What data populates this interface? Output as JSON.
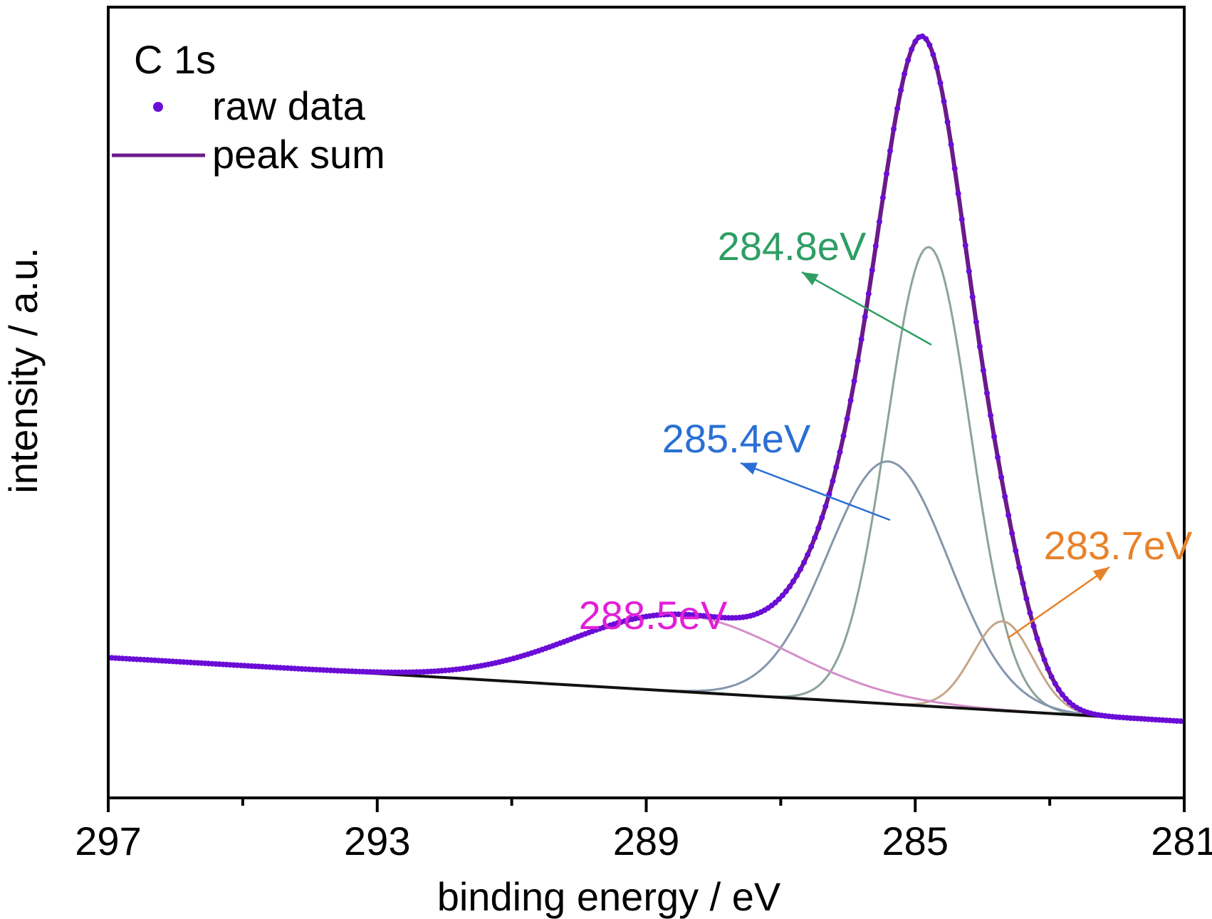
{
  "chart_data": {
    "type": "line",
    "title": "",
    "xlabel": "binding energy / eV",
    "ylabel": "intensity / a.u.",
    "xlim": [
      297,
      281
    ],
    "x_reversed": true,
    "ylim": [
      -0.12,
      1.12
    ],
    "xticks": [
      297,
      293,
      289,
      285,
      281
    ],
    "minor_xticks": [
      295,
      291,
      287,
      283
    ],
    "y_ticks_shown": false,
    "grid": false,
    "legend": {
      "title": "C 1s",
      "position": "top-left",
      "entries": [
        {
          "label": "raw data",
          "style": "dots",
          "color": "#6a0dd6"
        },
        {
          "label": "peak sum",
          "style": "line",
          "color": "#6b1a8a"
        }
      ]
    },
    "baseline": {
      "start": [
        297,
        0.1
      ],
      "end": [
        281,
        0.0
      ],
      "color": "#111111"
    },
    "components": [
      {
        "center": 284.8,
        "label": "284.8eV",
        "peak_height": 0.72,
        "width_sigma": 0.62,
        "color": "#8aa496",
        "label_color": "#2e9e64"
      },
      {
        "center": 285.4,
        "label": "285.4eV",
        "peak_height": 0.38,
        "width_sigma": 0.9,
        "color": "#8496ad",
        "label_color": "#2a6fd4"
      },
      {
        "center": 283.7,
        "label": "283.7eV",
        "peak_height": 0.14,
        "width_sigma": 0.45,
        "color": "#c4a68a",
        "label_color": "#e8822a"
      },
      {
        "center": 288.5,
        "label": "288.5eV",
        "peak_height": 0.12,
        "width_sigma": 1.6,
        "color": "#d48fc8",
        "label_color": "#e020d8"
      }
    ],
    "raw_data_color": "#6a0dd6",
    "peak_sum_color": "#6b1a8a"
  }
}
